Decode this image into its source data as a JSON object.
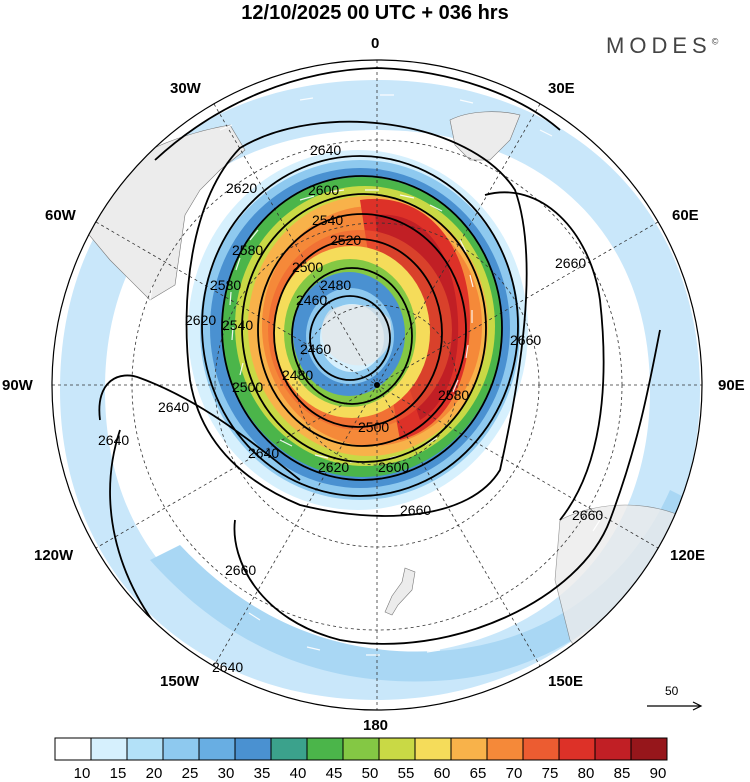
{
  "header": {
    "title": "12/10/2025  00 UTC  + 036 hrs",
    "brand": "MODES",
    "brand_mark": "©"
  },
  "map": {
    "projection": "south-polar-stereographic",
    "longitude_labels": {
      "top": "0",
      "top_left": "30W",
      "top_right": "30E",
      "upper_left": "60W",
      "upper_right": "60E",
      "left": "90W",
      "right": "90E",
      "lower_left": "120W",
      "lower_right": "120E",
      "bottom_left": "150W",
      "bottom_right": "150E",
      "bottom": "180"
    },
    "contour_labels": [
      "2640",
      "2620",
      "2600",
      "2580",
      "2540",
      "2520",
      "2500",
      "2480",
      "2460",
      "2620",
      "2540",
      "2580",
      "2500",
      "2460",
      "2480",
      "2640",
      "2620",
      "2600",
      "2500",
      "2580",
      "2660",
      "2660",
      "2640",
      "2640",
      "2660",
      "2660",
      "2660",
      "2640"
    ],
    "reference_vector": "50",
    "colors": {
      "map_background": "#ffffff",
      "land": "#ececec",
      "contour": "#000000",
      "wind_arrows": "#ffffff"
    }
  },
  "colorbar": {
    "ticks": [
      "10",
      "15",
      "20",
      "25",
      "30",
      "35",
      "40",
      "45",
      "50",
      "55",
      "60",
      "65",
      "70",
      "75",
      "80",
      "85",
      "90"
    ],
    "colors": [
      "#ffffff",
      "#d6f0fd",
      "#b3e1f8",
      "#8ec9ef",
      "#68aee3",
      "#4a91d1",
      "#3ba28c",
      "#4bb54a",
      "#84c844",
      "#c9d945",
      "#f5dc5a",
      "#f8b24a",
      "#f58939",
      "#ec5c31",
      "#dd3128",
      "#c11f25",
      "#96161b"
    ]
  }
}
